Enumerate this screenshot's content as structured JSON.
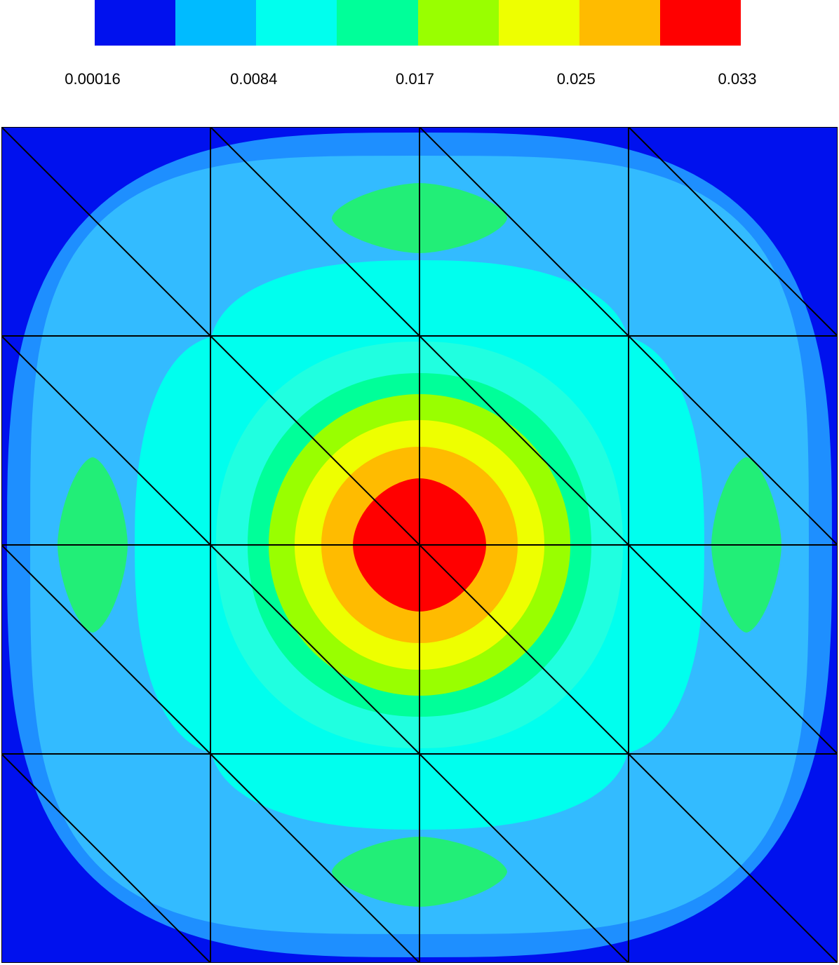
{
  "chart_data": {
    "type": "heatmap",
    "title": "",
    "xlabel": "",
    "ylabel": "",
    "colorbar": {
      "levels": 8,
      "colors": [
        "#0011ee",
        "#00bbff",
        "#00ffee",
        "#00ff99",
        "#99ff00",
        "#eeff00",
        "#ffbb00",
        "#ff0000"
      ],
      "tick_labels": [
        "0.00016",
        "0.0084",
        "0.017",
        "0.025",
        "0.033"
      ],
      "tick_values": [
        0.00016,
        0.0084,
        0.017,
        0.025,
        0.033
      ],
      "range": [
        0.00016,
        0.033
      ]
    },
    "field": {
      "peak_value": 0.033,
      "peak_location": "center",
      "corner_value": 0.00016,
      "secondary_maxima": [
        "top",
        "bottom",
        "left",
        "right"
      ],
      "secondary_value": 0.017
    },
    "mesh": {
      "rows": 4,
      "cols": 4,
      "diagonal": "top-left to bottom-right"
    }
  }
}
